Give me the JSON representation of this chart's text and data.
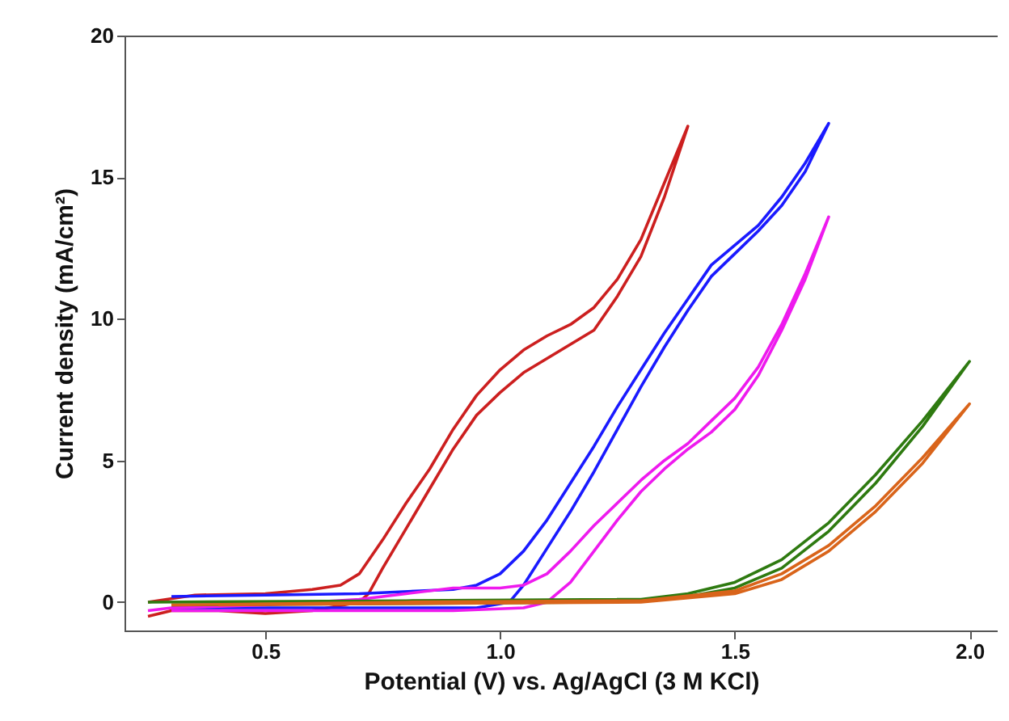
{
  "chart_data": {
    "type": "line",
    "xlabel": "Potential (V) vs. Ag/AgCl (3 M KCl)",
    "ylabel": "Current density (mA/cm²)",
    "xlim": [
      0.2,
      2.06
    ],
    "xticks": [
      {
        "value": 0.5,
        "label": "0.5"
      },
      {
        "value": 1.0,
        "label": "1.0"
      },
      {
        "value": 1.5,
        "label": "1.5"
      },
      {
        "value": 2.0,
        "label": "2.0"
      }
    ],
    "ylim": [
      -1,
      20
    ],
    "yticks": [
      0,
      5,
      10,
      15,
      20
    ],
    "grid": false,
    "legend": false,
    "marker": "none",
    "line_style": "solid",
    "series": [
      {
        "color": "#cc1f1f",
        "x": [
          0.25,
          0.35,
          0.5,
          0.6,
          0.66,
          0.7,
          0.75,
          0.8,
          0.85,
          0.9,
          0.95,
          1.0,
          1.05,
          1.1,
          1.15,
          1.2,
          1.25,
          1.3,
          1.35,
          1.4,
          1.35,
          1.3,
          1.25,
          1.2,
          1.15,
          1.1,
          1.05,
          1.0,
          0.95,
          0.9,
          0.85,
          0.8,
          0.75,
          0.72,
          0.7,
          0.6,
          0.5,
          0.4,
          0.3,
          0.25
        ],
        "values": [
          0.0,
          0.25,
          0.3,
          0.45,
          0.6,
          1.0,
          2.2,
          3.5,
          4.7,
          6.1,
          7.3,
          8.2,
          8.9,
          9.4,
          9.8,
          10.4,
          11.4,
          12.8,
          14.8,
          16.8,
          14.3,
          12.2,
          10.8,
          9.6,
          9.1,
          8.6,
          8.1,
          7.4,
          6.6,
          5.4,
          4.0,
          2.6,
          1.2,
          0.3,
          0.0,
          -0.3,
          -0.4,
          -0.3,
          -0.3,
          -0.5
        ]
      },
      {
        "color": "#1a1aff",
        "x": [
          0.3,
          0.5,
          0.7,
          0.9,
          0.95,
          1.0,
          1.05,
          1.1,
          1.15,
          1.2,
          1.25,
          1.3,
          1.35,
          1.4,
          1.45,
          1.5,
          1.55,
          1.6,
          1.65,
          1.7,
          1.65,
          1.6,
          1.55,
          1.5,
          1.45,
          1.4,
          1.35,
          1.3,
          1.25,
          1.2,
          1.15,
          1.1,
          1.05,
          1.02,
          0.95,
          0.7,
          0.5,
          0.3
        ],
        "values": [
          0.2,
          0.25,
          0.3,
          0.45,
          0.6,
          1.0,
          1.8,
          2.9,
          4.2,
          5.5,
          6.9,
          8.2,
          9.5,
          10.7,
          11.9,
          12.6,
          13.3,
          14.3,
          15.5,
          16.9,
          15.2,
          14.0,
          13.1,
          12.3,
          11.5,
          10.3,
          9.0,
          7.6,
          6.1,
          4.6,
          3.2,
          1.9,
          0.6,
          0.0,
          -0.2,
          -0.2,
          -0.2,
          -0.2
        ]
      },
      {
        "color": "#ee1aee",
        "x": [
          0.25,
          0.3,
          0.5,
          0.7,
          0.8,
          0.9,
          0.95,
          1.0,
          1.05,
          1.1,
          1.15,
          1.2,
          1.25,
          1.3,
          1.35,
          1.4,
          1.45,
          1.5,
          1.55,
          1.6,
          1.65,
          1.7,
          1.65,
          1.6,
          1.55,
          1.5,
          1.45,
          1.4,
          1.35,
          1.3,
          1.25,
          1.2,
          1.15,
          1.1,
          1.05,
          0.9,
          0.6,
          0.3
        ],
        "values": [
          -0.3,
          -0.2,
          -0.1,
          0.1,
          0.3,
          0.5,
          0.5,
          0.5,
          0.6,
          1.0,
          1.8,
          2.7,
          3.5,
          4.3,
          5.0,
          5.6,
          6.4,
          7.2,
          8.3,
          9.8,
          11.6,
          13.6,
          11.4,
          9.6,
          8.0,
          6.8,
          6.0,
          5.4,
          4.7,
          3.9,
          2.9,
          1.8,
          0.7,
          0.0,
          -0.2,
          -0.3,
          -0.3,
          -0.3
        ]
      },
      {
        "color": "#2e7a10",
        "x": [
          0.25,
          0.8,
          1.3,
          1.4,
          1.5,
          1.6,
          1.7,
          1.8,
          1.9,
          2.0,
          1.9,
          1.8,
          1.7,
          1.6,
          1.5,
          1.4,
          1.2,
          0.8,
          0.3
        ],
        "values": [
          0.0,
          0.05,
          0.1,
          0.3,
          0.7,
          1.5,
          2.8,
          4.5,
          6.4,
          8.5,
          6.2,
          4.2,
          2.5,
          1.2,
          0.5,
          0.2,
          0.0,
          -0.05,
          -0.1
        ]
      },
      {
        "color": "#d9641a",
        "x": [
          0.3,
          0.8,
          1.3,
          1.5,
          1.6,
          1.7,
          1.8,
          1.9,
          2.0,
          1.9,
          1.8,
          1.7,
          1.6,
          1.5,
          1.3,
          0.8,
          0.4
        ],
        "values": [
          -0.1,
          0.0,
          0.05,
          0.4,
          1.0,
          2.0,
          3.4,
          5.1,
          7.0,
          4.9,
          3.2,
          1.8,
          0.8,
          0.3,
          0.0,
          -0.05,
          -0.1
        ]
      }
    ]
  }
}
